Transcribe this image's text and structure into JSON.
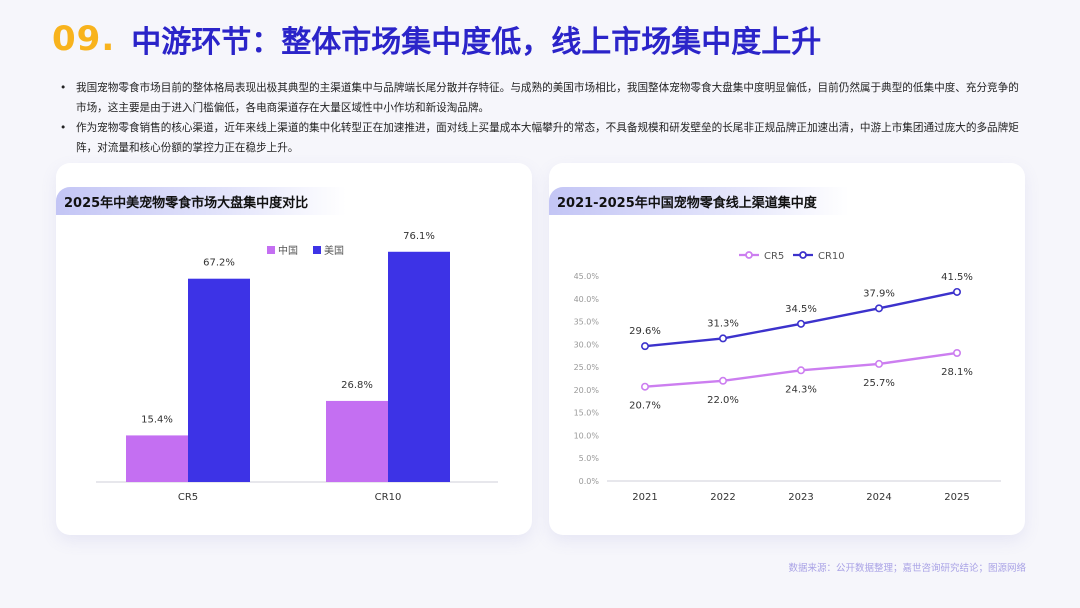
{
  "header": {
    "number": "09.",
    "title": "中游环节：整体市场集中度低，线上市场集中度上升"
  },
  "bullets": [
    "我国宠物零食市场目前的整体格局表现出极其典型的主渠道集中与品牌端长尾分散并存特征。与成熟的美国市场相比，我国整体宠物零食大盘集中度明显偏低，目前仍然属于典型的低集中度、充分竞争的市场，这主要是由于进入门槛偏低，各电商渠道存在大量区域性中小作坊和新设淘品牌。",
    "作为宠物零食销售的核心渠道，近年来线上渠道的集中化转型正在加速推进，面对线上买量成本大幅攀升的常态，不具备规模和研发壁垒的长尾非正规品牌正加速出清，中游上市集团通过庞大的多品牌矩阵，对流量和核心份额的掌控力正在稳步上升。"
  ],
  "footer": "数据来源：公开数据整理；嘉世咨询研究结论；图源网络",
  "chart_data": [
    {
      "type": "bar",
      "title": "2025年中美宠物零食市场大盘集中度对比",
      "categories": [
        "CR5",
        "CR10"
      ],
      "series": [
        {
          "name": "中国",
          "values": [
            15.4,
            26.8
          ],
          "color": "#c46ff2"
        },
        {
          "name": "美国",
          "values": [
            67.2,
            76.1
          ],
          "color": "#3d33e6"
        }
      ],
      "value_labels": [
        [
          "15.4%",
          "26.8%"
        ],
        [
          "67.2%",
          "76.1%"
        ]
      ],
      "ylim": [
        0,
        80
      ],
      "legend": "top-center",
      "grid": false
    },
    {
      "type": "line",
      "title": "2021-2025年中国宠物零食线上渠道集中度",
      "x": [
        "2021",
        "2022",
        "2023",
        "2024",
        "2025"
      ],
      "series": [
        {
          "name": "CR5",
          "values": [
            20.7,
            22.0,
            24.3,
            25.7,
            28.1
          ],
          "color": "#cc7ef0",
          "labels": [
            "20.7%",
            "22.0%",
            "24.3%",
            "25.7%",
            "28.1%"
          ]
        },
        {
          "name": "CR10",
          "values": [
            29.6,
            31.3,
            34.5,
            37.9,
            41.5
          ],
          "color": "#3c32cc",
          "labels": [
            "29.6%",
            "31.3%",
            "34.5%",
            "37.9%",
            "41.5%"
          ]
        }
      ],
      "y_ticks": [
        "0.0%",
        "5.0%",
        "10.0%",
        "15.0%",
        "20.0%",
        "25.0%",
        "30.0%",
        "35.0%",
        "40.0%",
        "45.0%"
      ],
      "ylim": [
        0,
        45
      ],
      "legend": "top-center",
      "grid": false
    }
  ]
}
